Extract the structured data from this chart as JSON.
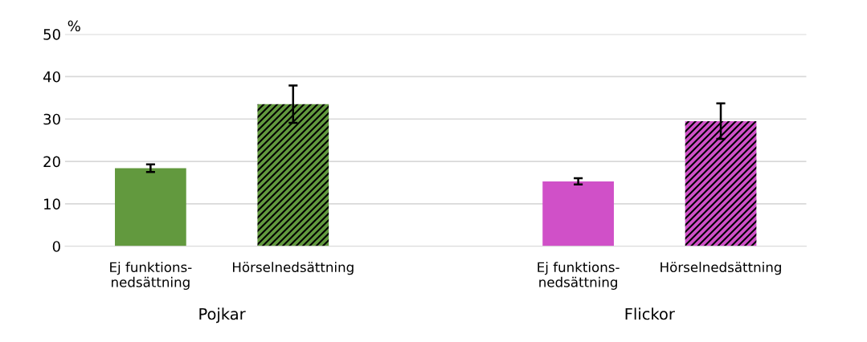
{
  "chart_data": {
    "type": "bar",
    "ylabel": "%",
    "categories": [
      "Ej funktions-\nnedsättning",
      "Hörselnedsättning",
      null,
      "Ej funktions-\nnedsättning",
      "Hörselnedsättning"
    ],
    "values": [
      18.4,
      33.5,
      null,
      15.3,
      29.5
    ],
    "errors": [
      0.9,
      4.4,
      null,
      0.75,
      4.2
    ],
    "colors": [
      "#62993e",
      "#62993e",
      "#ffffff",
      "#d050c8",
      "#d050c8"
    ],
    "annotations": [
      "Pojkar",
      "Flickor"
    ],
    "ylim": [
      0,
      50
    ],
    "yticks": [
      0,
      10,
      20,
      30,
      40,
      50
    ],
    "grid": "y"
  }
}
